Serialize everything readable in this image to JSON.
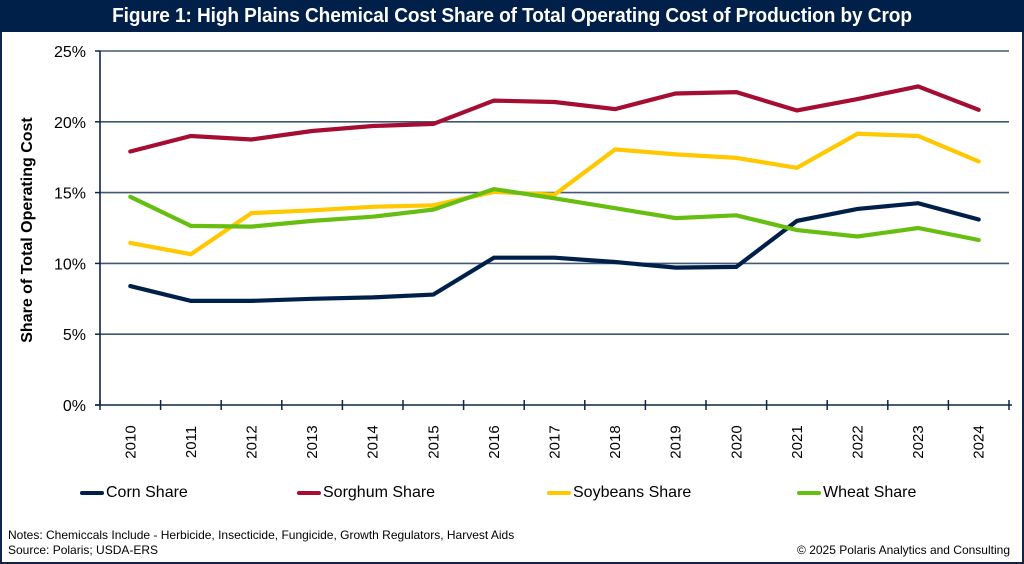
{
  "title": "Figure 1: High Plains Chemical Cost Share of Total Operating Cost of Production by Crop",
  "notes": {
    "line1": "Notes: Chemiccals Include - Herbicide, Insecticide, Fungicide, Growth Regulators, Harvest Aids",
    "line2": "Source: Polaris; USDA-ERS",
    "copyright": "© 2025 Polaris Analytics and Consulting"
  },
  "chart_data": {
    "type": "line",
    "title": "Figure 1: High Plains Chemical Cost Share of Total Operating Cost of Production by Crop",
    "xlabel": "",
    "ylabel": "Share of Total Operating Cost",
    "ylim": [
      0,
      25
    ],
    "yticks": [
      0,
      5,
      10,
      15,
      20,
      25
    ],
    "ytick_labels": [
      "0%",
      "5%",
      "10%",
      "15%",
      "20%",
      "25%"
    ],
    "grid": true,
    "legend_position": "bottom",
    "categories": [
      "2010",
      "2011",
      "2012",
      "2013",
      "2014",
      "2015",
      "2016",
      "2017",
      "2018",
      "2019",
      "2020",
      "2021",
      "2022",
      "2023",
      "2024"
    ],
    "series": [
      {
        "name": "Corn Share",
        "color": "#00204a",
        "values": [
          8.4,
          7.35,
          7.35,
          7.5,
          7.6,
          7.8,
          10.4,
          10.4,
          10.1,
          9.7,
          9.75,
          13.0,
          13.85,
          14.25,
          13.1
        ]
      },
      {
        "name": "Sorghum Share",
        "color": "#a50d32",
        "values": [
          17.9,
          19.0,
          18.75,
          19.35,
          19.7,
          19.85,
          21.5,
          21.4,
          20.9,
          22.0,
          22.1,
          20.8,
          21.6,
          22.5,
          20.85
        ]
      },
      {
        "name": "Soybeans Share",
        "color": "#ffc800",
        "values": [
          11.45,
          10.65,
          13.55,
          13.75,
          14.0,
          14.1,
          15.05,
          14.85,
          18.05,
          17.7,
          17.45,
          16.75,
          19.15,
          19.0,
          17.2
        ]
      },
      {
        "name": "Wheat Share",
        "color": "#66bf10",
        "values": [
          14.7,
          12.65,
          12.6,
          13.0,
          13.3,
          13.8,
          15.25,
          14.6,
          13.9,
          13.2,
          13.4,
          12.35,
          11.9,
          12.5,
          11.65
        ]
      }
    ]
  }
}
